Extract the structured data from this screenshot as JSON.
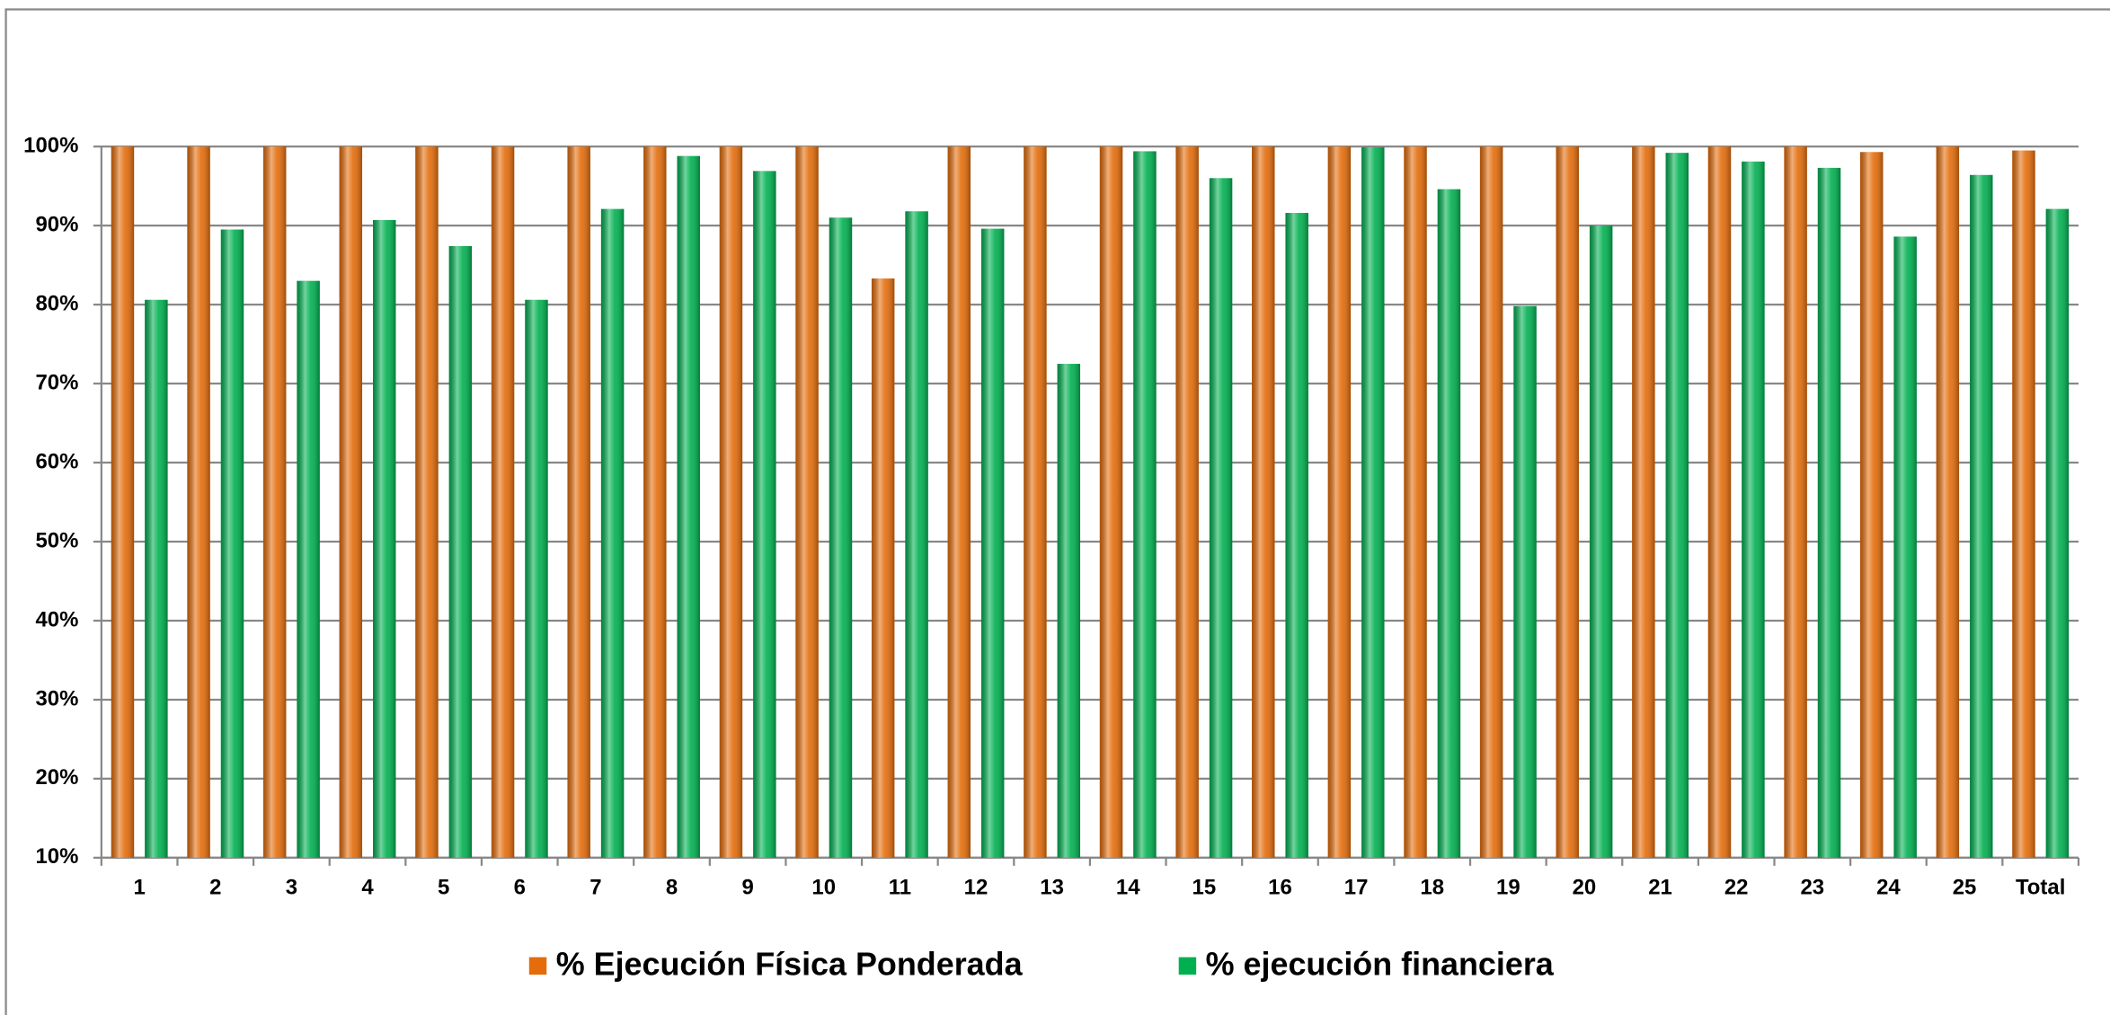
{
  "chart_data": {
    "type": "bar",
    "categories": [
      "1",
      "2",
      "3",
      "4",
      "5",
      "6",
      "7",
      "8",
      "9",
      "10",
      "11",
      "12",
      "13",
      "14",
      "15",
      "16",
      "17",
      "18",
      "19",
      "20",
      "21",
      "22",
      "23",
      "24",
      "25",
      "Total"
    ],
    "series": [
      {
        "name": "% Ejecución Física Ponderada",
        "color": "#e46c0a",
        "values": [
          100,
          100,
          100,
          100,
          100,
          100,
          100,
          100,
          100,
          100,
          83.3,
          100,
          100,
          100,
          100,
          100,
          100,
          100,
          100,
          100,
          100,
          100,
          100,
          99.3,
          100,
          99.5
        ]
      },
      {
        "name": "% ejecución financiera",
        "color": "#00b050",
        "values": [
          80.6,
          89.5,
          83,
          90.7,
          87.4,
          80.6,
          92.1,
          98.8,
          96.9,
          91,
          91.8,
          89.6,
          72.5,
          99.4,
          96,
          91.6,
          99.9,
          94.6,
          79.8,
          90,
          99.2,
          98.1,
          97.3,
          88.6,
          96.4,
          92.1
        ]
      }
    ],
    "ylim": [
      10,
      100
    ],
    "yticks": [
      {
        "value": 10,
        "label": "10%"
      },
      {
        "value": 20,
        "label": "20%"
      },
      {
        "value": 30,
        "label": "30%"
      },
      {
        "value": 40,
        "label": "40%"
      },
      {
        "value": 50,
        "label": "50%"
      },
      {
        "value": 60,
        "label": "60%"
      },
      {
        "value": 70,
        "label": "70%"
      },
      {
        "value": 80,
        "label": "80%"
      },
      {
        "value": 90,
        "label": "90%"
      },
      {
        "value": 100,
        "label": "100%"
      }
    ],
    "grid": true,
    "legend": "bottom"
  }
}
